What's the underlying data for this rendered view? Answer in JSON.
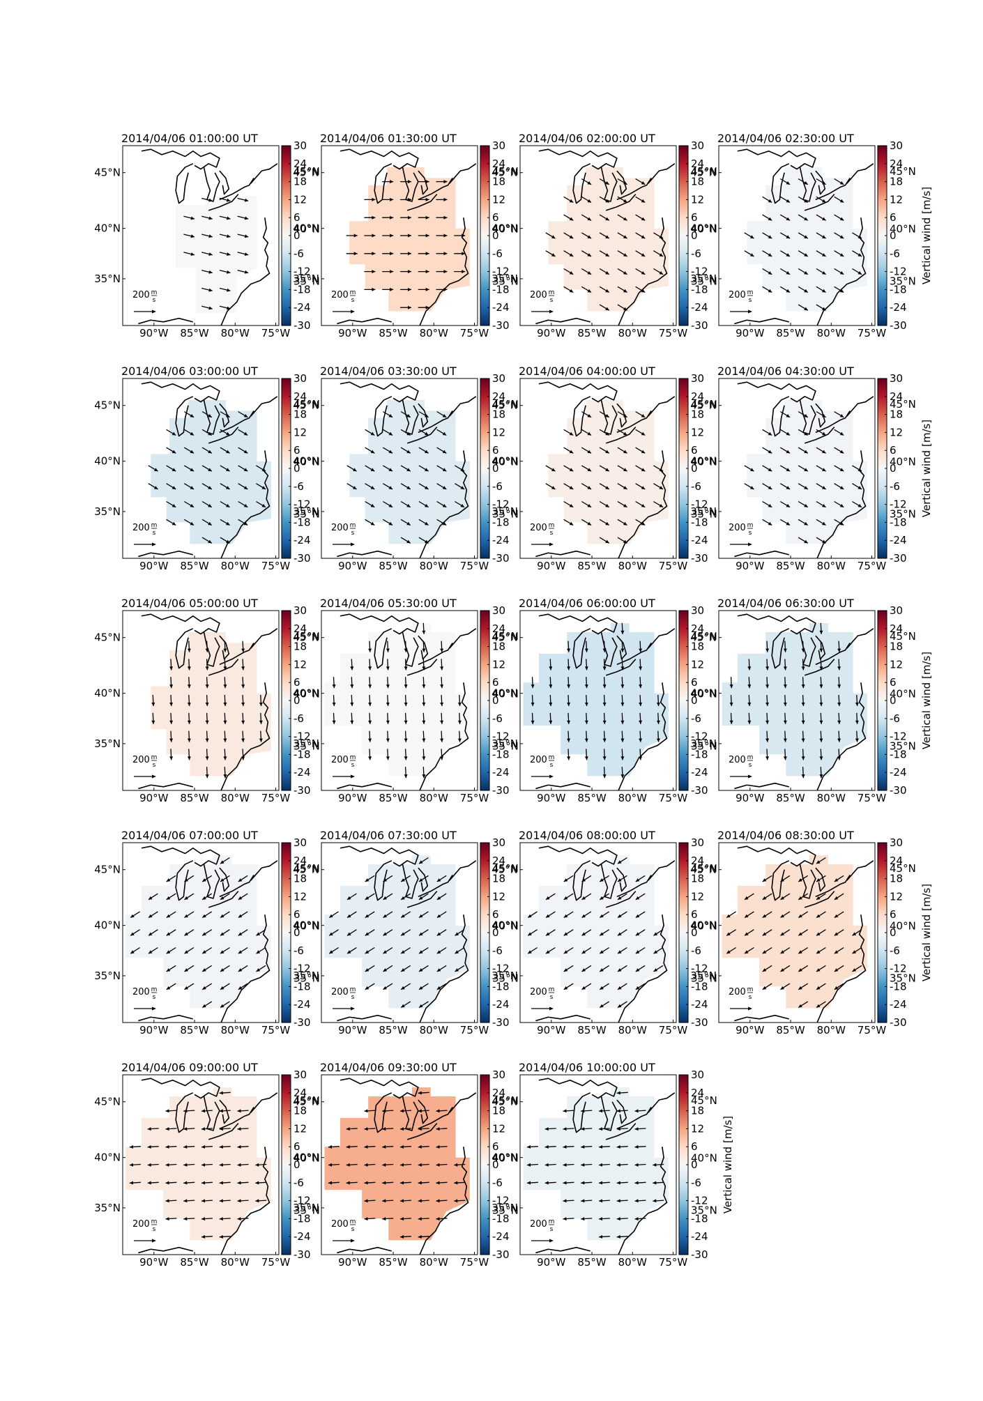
{
  "figure": {
    "colorbar_label": "Vertical wind [m/s]",
    "colorbar_ticks": [
      "30",
      "24",
      "18",
      "12",
      "6",
      "0",
      "-6",
      "-12",
      "-18",
      "-24",
      "-30"
    ],
    "lon_ticks": [
      "90°W",
      "85°W",
      "80°W",
      "75°W"
    ],
    "lat_ticks": [
      "45°N",
      "40°N",
      "35°N"
    ],
    "vector_scale_value": "200",
    "vector_scale_unit_num": "m",
    "vector_scale_unit_den": "s",
    "colormap": {
      "negative": "#053061",
      "zero": "#f7f7f7",
      "positive": "#67001f"
    }
  },
  "panels": [
    {
      "title": "2014/04/06 01:00:00 UT",
      "vertical_wind": 0,
      "wind_dir": "ESE",
      "region": "small"
    },
    {
      "title": "2014/04/06 01:30:00 UT",
      "vertical_wind": 6,
      "wind_dir": "E",
      "region": "large"
    },
    {
      "title": "2014/04/06 02:00:00 UT",
      "vertical_wind": 3,
      "wind_dir": "SE",
      "region": "large"
    },
    {
      "title": "2014/04/06 02:30:00 UT",
      "vertical_wind": -1,
      "wind_dir": "SE",
      "region": "large"
    },
    {
      "title": "2014/04/06 03:00:00 UT",
      "vertical_wind": -5,
      "wind_dir": "SE",
      "region": "large"
    },
    {
      "title": "2014/04/06 03:30:00 UT",
      "vertical_wind": -4,
      "wind_dir": "SE",
      "region": "large"
    },
    {
      "title": "2014/04/06 04:00:00 UT",
      "vertical_wind": 2,
      "wind_dir": "SE",
      "region": "large"
    },
    {
      "title": "2014/04/06 04:30:00 UT",
      "vertical_wind": -1,
      "wind_dir": "SE",
      "region": "large"
    },
    {
      "title": "2014/04/06 05:00:00 UT",
      "vertical_wind": 3,
      "wind_dir": "S",
      "region": "large"
    },
    {
      "title": "2014/04/06 05:30:00 UT",
      "vertical_wind": 0,
      "wind_dir": "S",
      "region": "wide"
    },
    {
      "title": "2014/04/06 06:00:00 UT",
      "vertical_wind": -6,
      "wind_dir": "S",
      "region": "wide"
    },
    {
      "title": "2014/04/06 06:30:00 UT",
      "vertical_wind": -5,
      "wind_dir": "S",
      "region": "wide"
    },
    {
      "title": "2014/04/06 07:00:00 UT",
      "vertical_wind": -1,
      "wind_dir": "SW",
      "region": "wide"
    },
    {
      "title": "2014/04/06 07:30:00 UT",
      "vertical_wind": -3,
      "wind_dir": "SW",
      "region": "wide"
    },
    {
      "title": "2014/04/06 08:00:00 UT",
      "vertical_wind": -1,
      "wind_dir": "SW",
      "region": "wide"
    },
    {
      "title": "2014/04/06 08:30:00 UT",
      "vertical_wind": 5,
      "wind_dir": "SW",
      "region": "wide"
    },
    {
      "title": "2014/04/06 09:00:00 UT",
      "vertical_wind": 3,
      "wind_dir": "W",
      "region": "wide"
    },
    {
      "title": "2014/04/06 09:30:00 UT",
      "vertical_wind": 11,
      "wind_dir": "W",
      "region": "wide"
    },
    {
      "title": "2014/04/06 10:00:00 UT",
      "vertical_wind": -2,
      "wind_dir": "W",
      "region": "wide"
    }
  ]
}
